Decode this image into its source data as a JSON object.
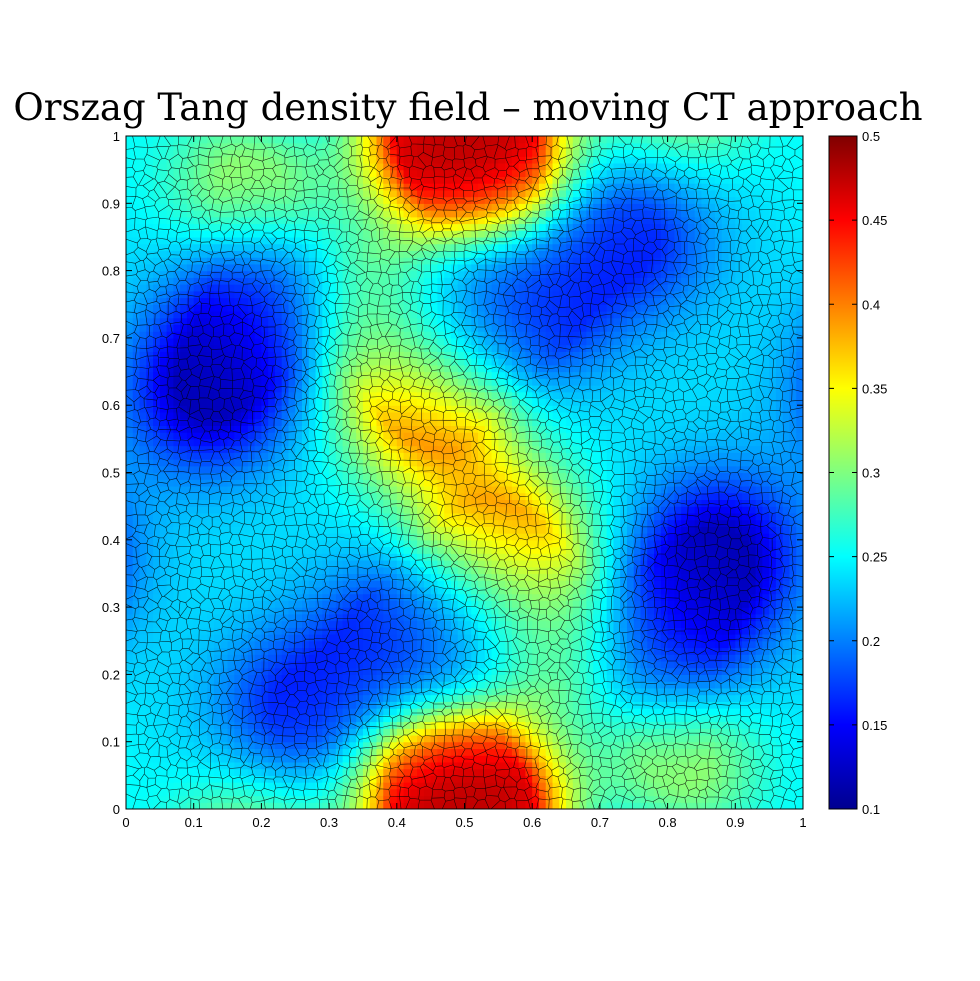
{
  "chart_data": {
    "type": "heatmap",
    "title": "Orszag Tang density field – moving CT approach",
    "xlabel": "",
    "ylabel": "",
    "xlim": [
      0,
      1
    ],
    "ylim": [
      0,
      1
    ],
    "x_ticks": [
      "0",
      "0.1",
      "0.2",
      "0.3",
      "0.4",
      "0.5",
      "0.6",
      "0.7",
      "0.8",
      "0.9",
      "1"
    ],
    "y_ticks": [
      "0",
      "0.1",
      "0.2",
      "0.3",
      "0.4",
      "0.5",
      "0.6",
      "0.7",
      "0.8",
      "0.9",
      "1"
    ],
    "colorbar": {
      "colormap": "jet",
      "range": [
        0.1,
        0.5
      ],
      "ticks": [
        "0.1",
        "0.15",
        "0.2",
        "0.25",
        "0.3",
        "0.35",
        "0.4",
        "0.45",
        "0.5"
      ]
    },
    "mesh": "moving Voronoi cells (black edges)",
    "grid": false,
    "legend": "none",
    "field_features": [
      {
        "x": 0.52,
        "y": 0.97,
        "value": 0.48
      },
      {
        "x": 0.48,
        "y": 0.03,
        "value": 0.48
      },
      {
        "x": 0.45,
        "y": 0.6,
        "value": 0.42
      },
      {
        "x": 0.55,
        "y": 0.39,
        "value": 0.42
      },
      {
        "x": 0.37,
        "y": 0.74,
        "value": 0.32
      },
      {
        "x": 0.63,
        "y": 0.26,
        "value": 0.32
      },
      {
        "x": 0.18,
        "y": 0.93,
        "value": 0.32
      },
      {
        "x": 0.82,
        "y": 0.07,
        "value": 0.32
      },
      {
        "x": 0.12,
        "y": 0.62,
        "value": 0.12
      },
      {
        "x": 0.88,
        "y": 0.38,
        "value": 0.12
      },
      {
        "x": 0.2,
        "y": 0.75,
        "value": 0.14
      },
      {
        "x": 0.8,
        "y": 0.25,
        "value": 0.14
      },
      {
        "x": 0.5,
        "y": 0.72,
        "value": 0.17
      },
      {
        "x": 0.5,
        "y": 0.28,
        "value": 0.17
      },
      {
        "x": 0.25,
        "y": 0.15,
        "value": 0.16
      },
      {
        "x": 0.75,
        "y": 0.85,
        "value": 0.16
      },
      {
        "x": 0.4,
        "y": 0.25,
        "value": 0.16
      },
      {
        "x": 0.6,
        "y": 0.75,
        "value": 0.16
      }
    ],
    "background_value": 0.24
  }
}
